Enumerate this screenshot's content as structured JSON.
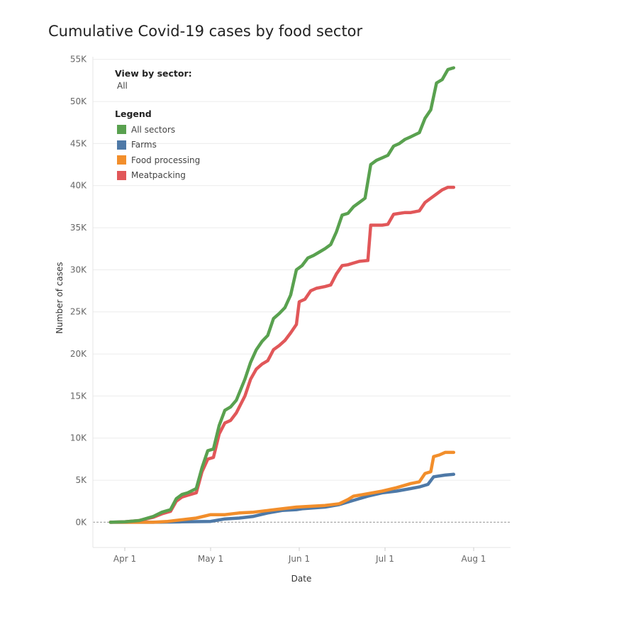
{
  "chart_data": {
    "type": "line",
    "title": "Cumulative Covid-19 cases by food sector",
    "xlabel": "Date",
    "ylabel": "Number of cases",
    "ylim": [
      -3000,
      57000
    ],
    "xlim": [
      -10,
      135
    ],
    "y_ticks": [
      0,
      5000,
      10000,
      15000,
      20000,
      25000,
      30000,
      35000,
      40000,
      45000,
      50000,
      55000
    ],
    "y_tick_labels": [
      "0K",
      "5K",
      "10K",
      "15K",
      "20K",
      "25K",
      "30K",
      "35K",
      "40K",
      "45K",
      "50K",
      "55K"
    ],
    "x_ticks": [
      0,
      30,
      61,
      91,
      122
    ],
    "x_tick_labels": [
      "Apr 1",
      "May 1",
      "Jun 1",
      "Jul 1",
      "Aug 1"
    ],
    "x_unit": "days since Apr 1",
    "grid": true,
    "zero_line": true,
    "filter": {
      "title": "View by sector:",
      "value": "All"
    },
    "legend_title": "Legend",
    "legend_position": "top-left",
    "series": [
      {
        "name": "All sectors",
        "color": "#59a14f",
        "points": [
          [
            -5,
            0
          ],
          [
            0,
            50
          ],
          [
            5,
            200
          ],
          [
            10,
            700
          ],
          [
            13,
            1200
          ],
          [
            16,
            1500
          ],
          [
            18,
            2800
          ],
          [
            20,
            3300
          ],
          [
            22,
            3500
          ],
          [
            25,
            4000
          ],
          [
            27,
            6500
          ],
          [
            29,
            8500
          ],
          [
            31,
            8700
          ],
          [
            33,
            11500
          ],
          [
            35,
            13300
          ],
          [
            37,
            13700
          ],
          [
            39,
            14500
          ],
          [
            42,
            17000
          ],
          [
            44,
            19000
          ],
          [
            46,
            20500
          ],
          [
            48,
            21500
          ],
          [
            50,
            22200
          ],
          [
            52,
            24200
          ],
          [
            54,
            24800
          ],
          [
            56,
            25500
          ],
          [
            58,
            27000
          ],
          [
            60,
            30000
          ],
          [
            62,
            30500
          ],
          [
            64,
            31400
          ],
          [
            66,
            31700
          ],
          [
            68,
            32100
          ],
          [
            70,
            32500
          ],
          [
            72,
            33000
          ],
          [
            74,
            34500
          ],
          [
            76,
            36500
          ],
          [
            78,
            36700
          ],
          [
            80,
            37500
          ],
          [
            82,
            38000
          ],
          [
            84,
            38500
          ],
          [
            86,
            42500
          ],
          [
            88,
            43000
          ],
          [
            90,
            43300
          ],
          [
            92,
            43600
          ],
          [
            94,
            44700
          ],
          [
            96,
            45000
          ],
          [
            98,
            45500
          ],
          [
            100,
            45800
          ],
          [
            103,
            46300
          ],
          [
            105,
            48000
          ],
          [
            107,
            49000
          ],
          [
            109,
            52200
          ],
          [
            111,
            52600
          ],
          [
            113,
            53800
          ],
          [
            115,
            54000
          ]
        ]
      },
      {
        "name": "Farms",
        "color": "#4e79a7",
        "points": [
          [
            -5,
            0
          ],
          [
            10,
            0
          ],
          [
            20,
            50
          ],
          [
            30,
            100
          ],
          [
            35,
            400
          ],
          [
            40,
            500
          ],
          [
            45,
            700
          ],
          [
            50,
            1100
          ],
          [
            55,
            1400
          ],
          [
            60,
            1500
          ],
          [
            62,
            1600
          ],
          [
            70,
            1800
          ],
          [
            75,
            2100
          ],
          [
            80,
            2600
          ],
          [
            85,
            3100
          ],
          [
            90,
            3500
          ],
          [
            95,
            3700
          ],
          [
            100,
            4000
          ],
          [
            103,
            4200
          ],
          [
            106,
            4500
          ],
          [
            108,
            5400
          ],
          [
            112,
            5600
          ],
          [
            115,
            5700
          ]
        ]
      },
      {
        "name": "Food processing",
        "color": "#f28e2b",
        "points": [
          [
            -5,
            0
          ],
          [
            10,
            0
          ],
          [
            15,
            100
          ],
          [
            20,
            300
          ],
          [
            25,
            500
          ],
          [
            30,
            900
          ],
          [
            35,
            900
          ],
          [
            40,
            1100
          ],
          [
            45,
            1200
          ],
          [
            50,
            1400
          ],
          [
            55,
            1600
          ],
          [
            60,
            1800
          ],
          [
            65,
            1900
          ],
          [
            70,
            2000
          ],
          [
            75,
            2200
          ],
          [
            78,
            2700
          ],
          [
            80,
            3100
          ],
          [
            85,
            3400
          ],
          [
            90,
            3700
          ],
          [
            95,
            4100
          ],
          [
            100,
            4600
          ],
          [
            103,
            4800
          ],
          [
            105,
            5800
          ],
          [
            107,
            6000
          ],
          [
            108,
            7800
          ],
          [
            110,
            8000
          ],
          [
            112,
            8300
          ],
          [
            115,
            8300
          ]
        ]
      },
      {
        "name": "Meatpacking",
        "color": "#e15759",
        "points": [
          [
            -5,
            0
          ],
          [
            0,
            50
          ],
          [
            5,
            200
          ],
          [
            10,
            600
          ],
          [
            13,
            1000
          ],
          [
            16,
            1300
          ],
          [
            18,
            2500
          ],
          [
            20,
            3000
          ],
          [
            22,
            3200
          ],
          [
            25,
            3500
          ],
          [
            27,
            6000
          ],
          [
            29,
            7500
          ],
          [
            31,
            7700
          ],
          [
            33,
            10500
          ],
          [
            35,
            11800
          ],
          [
            37,
            12100
          ],
          [
            39,
            13000
          ],
          [
            42,
            15000
          ],
          [
            44,
            17000
          ],
          [
            46,
            18200
          ],
          [
            48,
            18800
          ],
          [
            50,
            19200
          ],
          [
            52,
            20500
          ],
          [
            54,
            21000
          ],
          [
            56,
            21600
          ],
          [
            58,
            22500
          ],
          [
            60,
            23500
          ],
          [
            61,
            26200
          ],
          [
            63,
            26500
          ],
          [
            65,
            27500
          ],
          [
            67,
            27800
          ],
          [
            70,
            28000
          ],
          [
            72,
            28200
          ],
          [
            74,
            29500
          ],
          [
            76,
            30500
          ],
          [
            78,
            30600
          ],
          [
            80,
            30800
          ],
          [
            82,
            31000
          ],
          [
            85,
            31100
          ],
          [
            86,
            35300
          ],
          [
            88,
            35300
          ],
          [
            90,
            35300
          ],
          [
            92,
            35400
          ],
          [
            94,
            36600
          ],
          [
            96,
            36700
          ],
          [
            98,
            36800
          ],
          [
            100,
            36800
          ],
          [
            103,
            37000
          ],
          [
            105,
            38000
          ],
          [
            107,
            38500
          ],
          [
            109,
            39000
          ],
          [
            111,
            39500
          ],
          [
            113,
            39800
          ],
          [
            115,
            39800
          ]
        ]
      }
    ]
  }
}
